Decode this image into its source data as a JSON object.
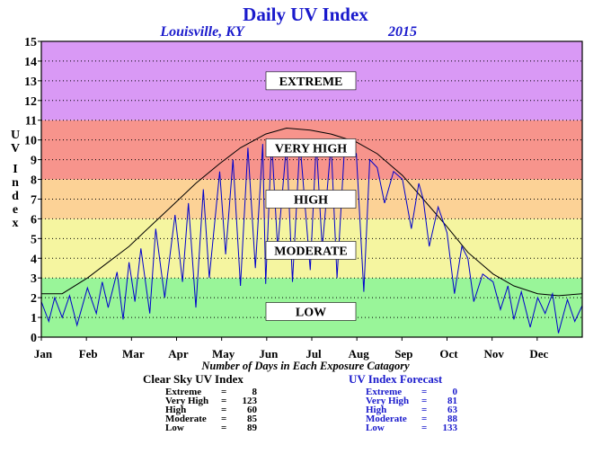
{
  "chart_data": {
    "type": "line",
    "title": "Daily UV Index",
    "location": "Louisville, KY",
    "year": "2015",
    "ylabel": "UV Index",
    "ylim": [
      0,
      15
    ],
    "yticks": [
      "0",
      "1",
      "2",
      "3",
      "4",
      "5",
      "6",
      "7",
      "8",
      "9",
      "10",
      "11",
      "12",
      "13",
      "14",
      "15"
    ],
    "xticks": [
      "Jan",
      "Feb",
      "Mar",
      "Apr",
      "May",
      "Jun",
      "Jul",
      "Aug",
      "Sep",
      "Oct",
      "Nov",
      "Dec"
    ],
    "xlim_days": [
      1,
      365
    ],
    "grid": true,
    "bands": [
      {
        "label": "LOW",
        "from": 0,
        "to": 3,
        "color": "#99f599",
        "label_y": 1.3
      },
      {
        "label": "MODERATE",
        "from": 3,
        "to": 6,
        "color": "#f5f5a0",
        "label_y": 4.4
      },
      {
        "label": "HIGH",
        "from": 6,
        "to": 8,
        "color": "#fcd296",
        "label_y": 7.0
      },
      {
        "label": "VERY HIGH",
        "from": 8,
        "to": 11,
        "color": "#f7948c",
        "label_y": 9.6
      },
      {
        "label": "EXTREME",
        "from": 11,
        "to": 15,
        "color": "#d999f5",
        "label_y": 13.0
      }
    ],
    "series": [
      {
        "name": "Clear Sky UV Index",
        "color": "#000000",
        "x": [
          1,
          15,
          32,
          46,
          60,
          74,
          91,
          105,
          121,
          135,
          152,
          166,
          182,
          196,
          213,
          227,
          244,
          258,
          274,
          288,
          305,
          319,
          335,
          349,
          365
        ],
        "y": [
          2.2,
          2.2,
          3.0,
          3.8,
          4.6,
          5.6,
          6.8,
          7.8,
          8.8,
          9.6,
          10.3,
          10.6,
          10.5,
          10.3,
          9.9,
          9.3,
          8.2,
          7.0,
          5.6,
          4.3,
          3.2,
          2.6,
          2.2,
          2.1,
          2.2
        ]
      },
      {
        "name": "UV Index Forecast",
        "color": "#0000cc",
        "x": [
          1,
          6,
          10,
          15,
          20,
          25,
          32,
          38,
          42,
          46,
          52,
          56,
          60,
          64,
          68,
          74,
          78,
          84,
          91,
          96,
          100,
          105,
          110,
          114,
          121,
          125,
          130,
          135,
          140,
          145,
          150,
          152,
          156,
          160,
          166,
          170,
          175,
          182,
          186,
          190,
          196,
          200,
          205,
          213,
          218,
          222,
          227,
          232,
          238,
          244,
          250,
          255,
          258,
          262,
          268,
          274,
          279,
          284,
          288,
          292,
          298,
          305,
          310,
          315,
          319,
          324,
          330,
          335,
          340,
          345,
          349,
          355,
          360,
          365
        ],
        "y": [
          1.8,
          0.8,
          2.0,
          1.0,
          2.1,
          0.6,
          2.5,
          1.2,
          2.8,
          1.5,
          3.3,
          0.9,
          3.8,
          1.8,
          4.5,
          1.2,
          5.5,
          2.0,
          6.2,
          2.8,
          6.8,
          1.5,
          7.5,
          3.0,
          8.4,
          4.2,
          9.0,
          2.6,
          9.6,
          3.5,
          9.8,
          2.7,
          10.0,
          4.5,
          9.8,
          2.8,
          9.9,
          3.4,
          9.9,
          4.5,
          9.8,
          3.0,
          9.6,
          9.3,
          2.3,
          9.0,
          8.6,
          6.8,
          8.4,
          8.0,
          5.5,
          7.8,
          7.0,
          4.6,
          6.6,
          5.3,
          2.2,
          4.6,
          4.0,
          1.8,
          3.2,
          2.8,
          1.4,
          2.6,
          0.9,
          2.3,
          0.5,
          2.0,
          1.2,
          2.2,
          0.2,
          1.9,
          0.8,
          1.6
        ]
      }
    ],
    "xlabel": "Number of Days in Each Exposure Catagory"
  },
  "stats": {
    "clear": {
      "title": "Clear Sky UV Index",
      "rows": [
        {
          "label": "Extreme",
          "value": "8"
        },
        {
          "label": "Very High",
          "value": "123"
        },
        {
          "label": "High",
          "value": "60"
        },
        {
          "label": "Moderate",
          "value": "85"
        },
        {
          "label": "Low",
          "value": "89"
        }
      ]
    },
    "forecast": {
      "title": "UV Index Forecast",
      "rows": [
        {
          "label": "Extreme",
          "value": "0"
        },
        {
          "label": "Very High",
          "value": "81"
        },
        {
          "label": "High",
          "value": "63"
        },
        {
          "label": "Moderate",
          "value": "88"
        },
        {
          "label": "Low",
          "value": "133"
        }
      ]
    }
  }
}
